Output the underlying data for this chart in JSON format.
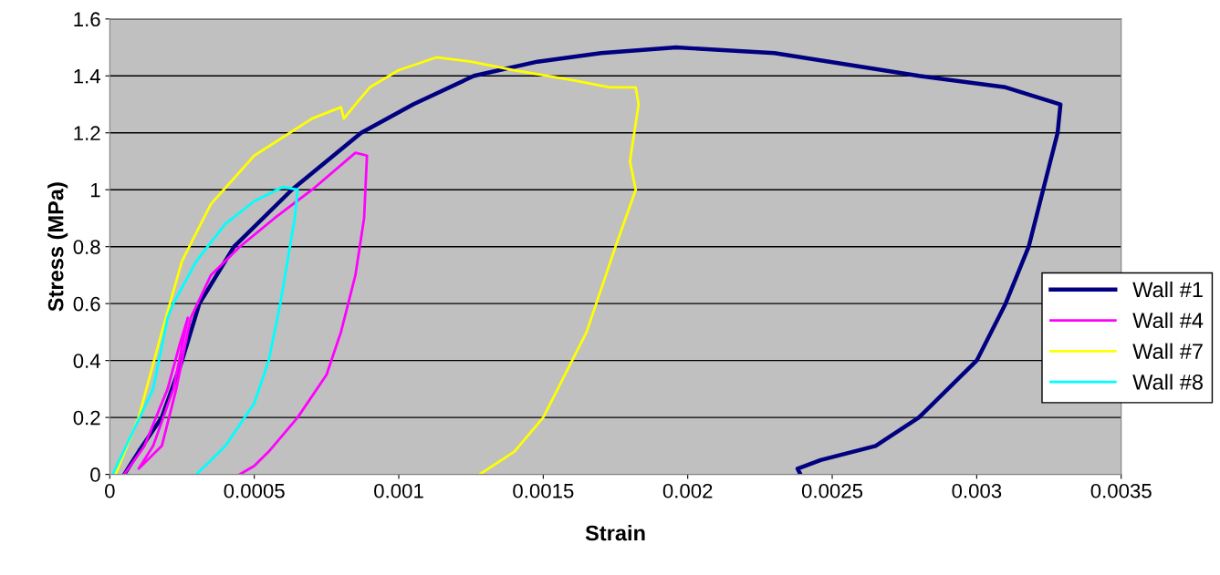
{
  "chart_data": {
    "type": "line",
    "xlabel": "Strain",
    "ylabel": "Stress (MPa)",
    "xlim": [
      0,
      0.0035
    ],
    "xticks": [
      0,
      0.0005,
      0.001,
      0.0015,
      0.002,
      0.0025,
      0.003,
      0.0035
    ],
    "ylim": [
      0,
      1.6
    ],
    "yticks": [
      0,
      0.2,
      0.4,
      0.6,
      0.8,
      1,
      1.2,
      1.4,
      1.6
    ],
    "grid": "y",
    "legend": "right",
    "marker": "none",
    "line_style": "solid",
    "series": [
      {
        "name": "Wall #1",
        "color": "#000080",
        "x": [
          5e-05,
          0.0001,
          0.00018,
          0.00025,
          0.00031,
          0.00043,
          0.00063,
          0.00087,
          0.00105,
          0.00126,
          0.00148,
          0.0017,
          0.00196,
          0.0023,
          0.0028,
          0.0031,
          0.00329,
          0.00328,
          0.00323,
          0.00318,
          0.0031,
          0.003,
          0.0028,
          0.00265,
          0.00246,
          0.00238,
          0.00239
        ],
        "values": [
          0,
          0.08,
          0.2,
          0.4,
          0.6,
          0.8,
          1.0,
          1.2,
          1.3,
          1.4,
          1.45,
          1.48,
          1.5,
          1.48,
          1.4,
          1.36,
          1.3,
          1.2,
          1.0,
          0.8,
          0.6,
          0.4,
          0.2,
          0.1,
          0.05,
          0.02,
          0
        ]
      },
      {
        "name": "Wall #4",
        "color": "#ff00ff",
        "x": [
          5e-05,
          0.00012,
          0.0002,
          0.00024,
          0.00027,
          0.00025,
          0.00022,
          0.00015,
          0.0001,
          0.00018,
          0.00023,
          0.00028,
          0.00035,
          0.00045,
          0.00057,
          0.0007,
          0.00085,
          0.00089,
          0.00088,
          0.00085,
          0.0008,
          0.00075,
          0.00065,
          0.00055,
          0.0005,
          0.00045
        ],
        "values": [
          0,
          0.1,
          0.3,
          0.45,
          0.55,
          0.45,
          0.3,
          0.1,
          0.02,
          0.1,
          0.3,
          0.55,
          0.7,
          0.8,
          0.9,
          1.0,
          1.13,
          1.12,
          0.9,
          0.7,
          0.5,
          0.35,
          0.2,
          0.08,
          0.03,
          0
        ]
      },
      {
        "name": "Wall #7",
        "color": "#ffff00",
        "x": [
          2e-05,
          0.0001,
          0.00018,
          0.00025,
          0.00035,
          0.0005,
          0.0007,
          0.0008,
          0.00081,
          0.00085,
          0.0009,
          0.001,
          0.00113,
          0.00125,
          0.0014,
          0.0016,
          0.00173,
          0.00182,
          0.00183,
          0.0018,
          0.00182,
          0.00175,
          0.00165,
          0.0016,
          0.0015,
          0.0014,
          0.00128
        ],
        "values": [
          0,
          0.2,
          0.5,
          0.75,
          0.95,
          1.12,
          1.25,
          1.29,
          1.25,
          1.3,
          1.36,
          1.42,
          1.465,
          1.45,
          1.42,
          1.385,
          1.36,
          1.36,
          1.3,
          1.1,
          1.0,
          0.8,
          0.5,
          0.4,
          0.2,
          0.08,
          0
        ]
      },
      {
        "name": "Wall #8",
        "color": "#00ffff",
        "x": [
          1e-05,
          8e-05,
          0.00015,
          0.0002,
          0.00022,
          0.0003,
          0.0004,
          0.0005,
          0.0006,
          0.00065,
          0.00064,
          0.00059,
          0.00055,
          0.0005,
          0.0004,
          0.0003
        ],
        "values": [
          0,
          0.15,
          0.3,
          0.55,
          0.6,
          0.75,
          0.88,
          0.96,
          1.01,
          1.0,
          0.9,
          0.6,
          0.4,
          0.25,
          0.1,
          0
        ]
      }
    ]
  }
}
